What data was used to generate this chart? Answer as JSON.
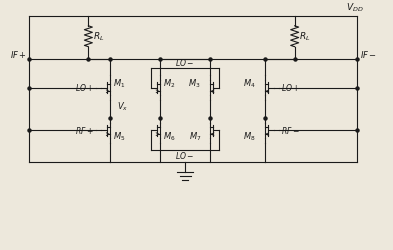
{
  "bg_color": "#ede8dc",
  "lc": "#1a1a1a",
  "figsize": [
    3.93,
    2.5
  ],
  "dpi": 100,
  "vdd_label": "$V_{DD}$",
  "rl_label": "$R_L$",
  "ifp_label": "$IF+$",
  "ifm_label": "$IF-$",
  "lop_label": "$LO+$",
  "lom_label": "$LO-$",
  "rfp_label": "$RF+$",
  "rfm_label": "$RF-$",
  "vx_label": "$V_x$",
  "m1_label": "$M_1$",
  "m2_label": "$M_2$",
  "m3_label": "$M_3$",
  "m4_label": "$M_4$",
  "m5_label": "$M_5$",
  "m6_label": "$M_6$",
  "m7_label": "$M_7$",
  "m8_label": "$M_8$"
}
